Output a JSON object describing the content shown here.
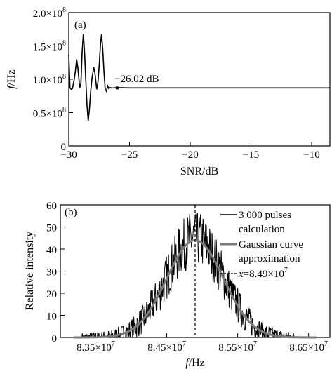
{
  "chart_data": [
    {
      "type": "line",
      "panel_label": "(a)",
      "xlabel": "SNR/dB",
      "ylabel_italic": "f",
      "ylabel_rest": "/Hz",
      "xlim": [
        -30,
        -8.5
      ],
      "ylim": [
        0,
        200000000
      ],
      "x_ticks": [
        {
          "value": -30,
          "label": "−30"
        },
        {
          "value": -25,
          "label": "−25"
        },
        {
          "value": -20,
          "label": "−20"
        },
        {
          "value": -15,
          "label": "−15"
        },
        {
          "value": -10,
          "label": "−10"
        }
      ],
      "y_ticks": [
        {
          "value": 0,
          "label": "0",
          "exp": ""
        },
        {
          "value": 50000000,
          "label": "0.5×10",
          "exp": "8"
        },
        {
          "value": 100000000,
          "label": "1.0×10",
          "exp": "8"
        },
        {
          "value": 150000000,
          "label": "1.5×10",
          "exp": "8"
        },
        {
          "value": 200000000,
          "label": "2.0×10",
          "exp": "8"
        }
      ],
      "series": [
        {
          "color": "#000000",
          "x": [
            -30,
            -29.9,
            -29.8,
            -29.7,
            -29.55,
            -29.45,
            -29.35,
            -29.25,
            -29.1,
            -29.0,
            -28.9,
            -28.8,
            -28.7,
            -28.6,
            -28.5,
            -28.4,
            -28.3,
            -28.2,
            -28.1,
            -27.95,
            -27.85,
            -27.7,
            -27.6,
            -27.5,
            -27.4,
            -27.3,
            -27.2,
            -27.1,
            -27.0,
            -26.9,
            -26.8,
            -26.7,
            -26.6,
            -26.5,
            -26.3,
            -26.0,
            -25.0,
            -20,
            -15,
            -10,
            -8.5
          ],
          "y": [
            137000000,
            87000000,
            85000000,
            86000000,
            100000000,
            113000000,
            130000000,
            117000000,
            87000000,
            94000000,
            140000000,
            168000000,
            140000000,
            100000000,
            60000000,
            38000000,
            55000000,
            80000000,
            100000000,
            118000000,
            110000000,
            85000000,
            95000000,
            120000000,
            150000000,
            168000000,
            145000000,
            110000000,
            85000000,
            82000000,
            90000000,
            86000000,
            87500000,
            87000000,
            87000000,
            87500000,
            87000000,
            87000000,
            87000000,
            87000000,
            87000000
          ]
        }
      ],
      "annotations": [
        {
          "text": "−26.02 dB",
          "x": -26.02,
          "y": 87000000
        }
      ]
    },
    {
      "type": "line",
      "panel_label": "(b)",
      "xlabel_italic": "f",
      "xlabel_rest": "/Hz",
      "ylabel": "Relative intensity",
      "xlim": [
        83000000,
        86800000
      ],
      "ylim": [
        0,
        60
      ],
      "x_ticks": [
        {
          "value": 83500000,
          "label": "8.35×10",
          "exp": "7"
        },
        {
          "value": 84500000,
          "label": "8.45×10",
          "exp": "7"
        },
        {
          "value": 85500000,
          "label": "8.55×10",
          "exp": "7"
        },
        {
          "value": 86500000,
          "label": "8.65×10",
          "exp": "7"
        }
      ],
      "y_ticks": [
        {
          "value": 0,
          "label": "0"
        },
        {
          "value": 10,
          "label": "10"
        },
        {
          "value": 20,
          "label": "20"
        },
        {
          "value": 30,
          "label": "30"
        },
        {
          "value": 40,
          "label": "40"
        },
        {
          "value": 50,
          "label": "50"
        },
        {
          "value": 60,
          "label": "60"
        }
      ],
      "series": [
        {
          "name_line1": "3 000 pulses",
          "name_line2": "calculation",
          "color": "#000000",
          "style": "noisy",
          "gaussian": {
            "amplitude": 45,
            "mean": 84900000,
            "sigma": 400000
          }
        },
        {
          "name_line1": "Gaussian curve",
          "name_line2": "approximation",
          "color": "#7a7a7a",
          "style": "smooth",
          "gaussian": {
            "amplitude": 44,
            "mean": 84900000,
            "sigma": 400000
          }
        }
      ],
      "vline": {
        "x": 84900000,
        "label_italic": "x",
        "label_rest": "=8.49×10",
        "exp": "7"
      },
      "legend_position": "top-right"
    }
  ]
}
